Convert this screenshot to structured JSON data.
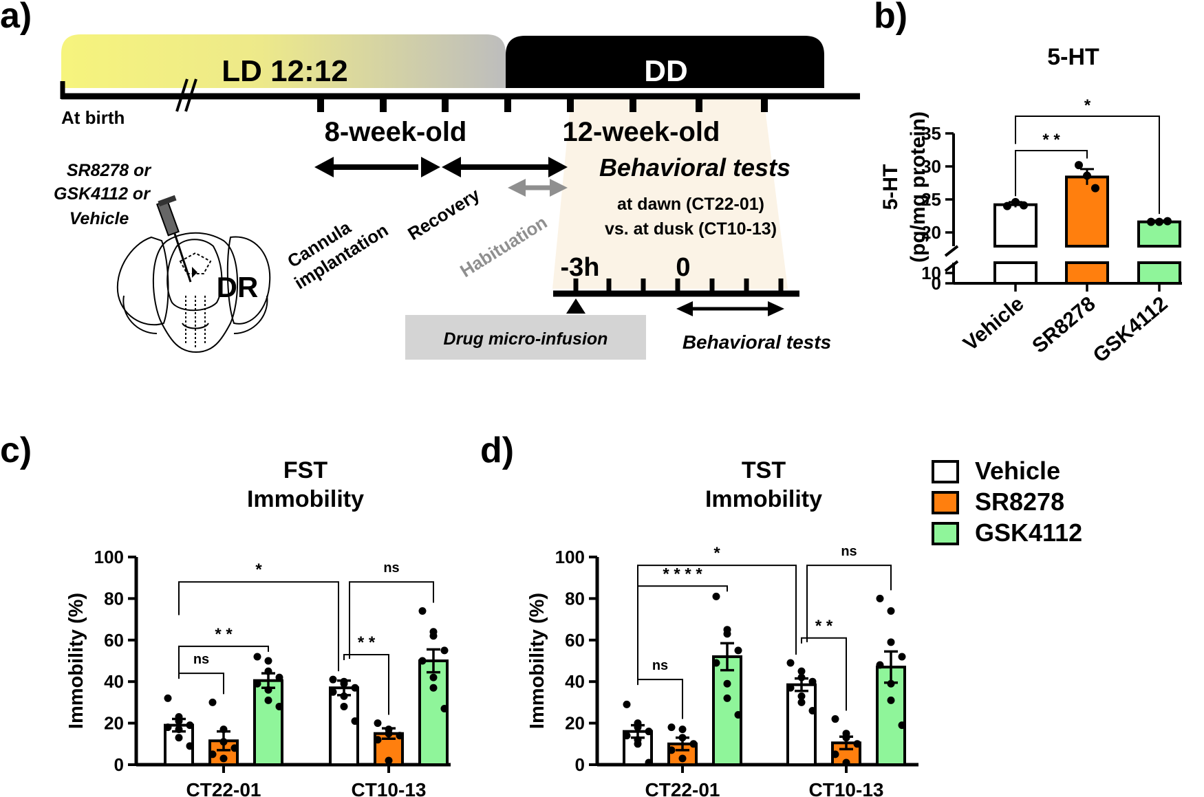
{
  "panels": {
    "a": {
      "label": "a)",
      "ld_label": "LD 12:12",
      "dd_label": "DD",
      "at_birth": "At birth",
      "eight_week": "8-week-old",
      "twelve_week": "12-week-old",
      "behavioral_tests_title": "Behavioral tests",
      "dawn": "at dawn (CT22-01)",
      "dusk": "vs. at dusk (CT10-13)",
      "cannula": [
        "Cannula",
        "implantation"
      ],
      "recovery": "Recovery",
      "habituation": "Habituation",
      "drugs": [
        "SR8278 or",
        "GSK4112 or",
        "Vehicle"
      ],
      "dr": "DR",
      "minus3h": "-3h",
      "zero": "0",
      "drug_infusion": "Drug micro-infusion",
      "behavioral_tests_bottom": "Behavioral tests",
      "colors": {
        "ld": "#f6f47d",
        "dd": "#000000",
        "test_shade": "#fbf3e6",
        "infusion_box": "#d4d4d4",
        "habituation": "#8f8f8f"
      }
    },
    "b": {
      "label": "b)"
    },
    "c": {
      "label": "c)"
    },
    "d": {
      "label": "d)"
    }
  },
  "legend": [
    {
      "name": "Vehicle",
      "color": "#ffffff"
    },
    {
      "name": "SR8278",
      "color": "#ff7f0e"
    },
    {
      "name": "GSK4112",
      "color": "#8ff59a"
    }
  ],
  "chart_data": [
    {
      "id": "b",
      "type": "bar",
      "title": "5-HT",
      "ylabel": [
        "5-HT",
        "(pg/mg protein)"
      ],
      "ylim": [
        0,
        35
      ],
      "broken_axis": {
        "lower": [
          0,
          10
        ],
        "upper": [
          18,
          35
        ]
      },
      "yticks": [
        0,
        10,
        20,
        25,
        30,
        35
      ],
      "categories": [
        "Vehicle",
        "SR8278",
        "GSK4112"
      ],
      "values": [
        24.2,
        28.4,
        21.6
      ],
      "sem": [
        0.4,
        1.2,
        0.2
      ],
      "points": [
        [
          24.0,
          24.6,
          24.1
        ],
        [
          30.2,
          28.6,
          26.7
        ],
        [
          21.6,
          21.6,
          21.7
        ]
      ],
      "significance": [
        {
          "from": 0,
          "to": 1,
          "label": "* *"
        },
        {
          "from": 0,
          "to": 2,
          "label": "*"
        }
      ]
    },
    {
      "id": "c",
      "type": "bar",
      "title": [
        "FST",
        "Immobility"
      ],
      "ylabel": "Immobility (%)",
      "ylim": [
        0,
        100
      ],
      "yticks": [
        0,
        20,
        40,
        60,
        80,
        100
      ],
      "groups": [
        "CT22-01",
        "CT10-13"
      ],
      "series": [
        {
          "name": "Vehicle",
          "values": [
            19,
            37
          ],
          "sem": [
            3,
            3.5
          ],
          "points": [
            [
              32,
              23,
              21,
              19,
              18,
              17,
              13,
              9
            ],
            [
              41,
              40,
              39,
              37,
              35,
              33,
              28,
              21
            ]
          ]
        },
        {
          "name": "SR8278",
          "values": [
            11.5,
            15
          ],
          "sem": [
            4.5,
            2.5
          ],
          "points": [
            [
              30,
              17,
              11,
              8,
              5,
              3
            ],
            [
              20,
              17,
              15,
              14,
              12,
              2
            ]
          ]
        },
        {
          "name": "GSK4112",
          "values": [
            40.5,
            50
          ],
          "sem": [
            3.5,
            5.5
          ],
          "points": [
            [
              52,
              50,
              45,
              42,
              39,
              36,
              31,
              28
            ],
            [
              74,
              64,
              62,
              55,
              50,
              42,
              37,
              27
            ]
          ]
        }
      ],
      "significance": [
        {
          "g1": 0,
          "s1": 0,
          "g2": 0,
          "s2": 1,
          "label": "ns"
        },
        {
          "g1": 0,
          "s1": 0,
          "g2": 0,
          "s2": 2,
          "label": "* *"
        },
        {
          "g1": 0,
          "s1": 0,
          "g2": 1,
          "s2": 0,
          "label": "*"
        },
        {
          "g1": 1,
          "s1": 0,
          "g2": 1,
          "s2": 1,
          "label": "* *"
        },
        {
          "g1": 1,
          "s1": 0,
          "g2": 1,
          "s2": 2,
          "label": "ns"
        }
      ]
    },
    {
      "id": "d",
      "type": "bar",
      "title": [
        "TST",
        "Immobility"
      ],
      "ylabel": "Immobility (%)",
      "ylim": [
        0,
        100
      ],
      "yticks": [
        0,
        20,
        40,
        60,
        80,
        100
      ],
      "groups": [
        "CT22-01",
        "CT10-13"
      ],
      "series": [
        {
          "name": "Vehicle",
          "values": [
            16,
            38.5
          ],
          "sem": [
            3,
            3
          ],
          "points": [
            [
              29,
              20,
              18,
              16,
              14,
              12,
              10,
              1
            ],
            [
              49,
              45,
              42,
              40,
              37,
              33,
              30,
              26
            ]
          ]
        },
        {
          "name": "SR8278",
          "values": [
            10,
            10.5
          ],
          "sem": [
            3,
            3
          ],
          "points": [
            [
              18,
              17,
              13,
              10,
              7,
              3
            ],
            [
              22,
              15,
              13,
              10,
              5,
              1
            ]
          ]
        },
        {
          "name": "GSK4112",
          "values": [
            52,
            47
          ],
          "sem": [
            6.5,
            7.5
          ],
          "points": [
            [
              81,
              65,
              63,
              55,
              49,
              39,
              32,
              24
            ],
            [
              80,
              74,
              59,
              52,
              48,
              39,
              31,
              19
            ]
          ]
        }
      ],
      "significance": [
        {
          "g1": 0,
          "s1": 0,
          "g2": 0,
          "s2": 1,
          "label": "ns"
        },
        {
          "g1": 0,
          "s1": 0,
          "g2": 0,
          "s2": 2,
          "label": "* * * *"
        },
        {
          "g1": 0,
          "s1": 0,
          "g2": 1,
          "s2": 0,
          "label": "*"
        },
        {
          "g1": 1,
          "s1": 0,
          "g2": 1,
          "s2": 1,
          "label": "* *"
        },
        {
          "g1": 1,
          "s1": 0,
          "g2": 1,
          "s2": 2,
          "label": "ns"
        }
      ]
    }
  ]
}
